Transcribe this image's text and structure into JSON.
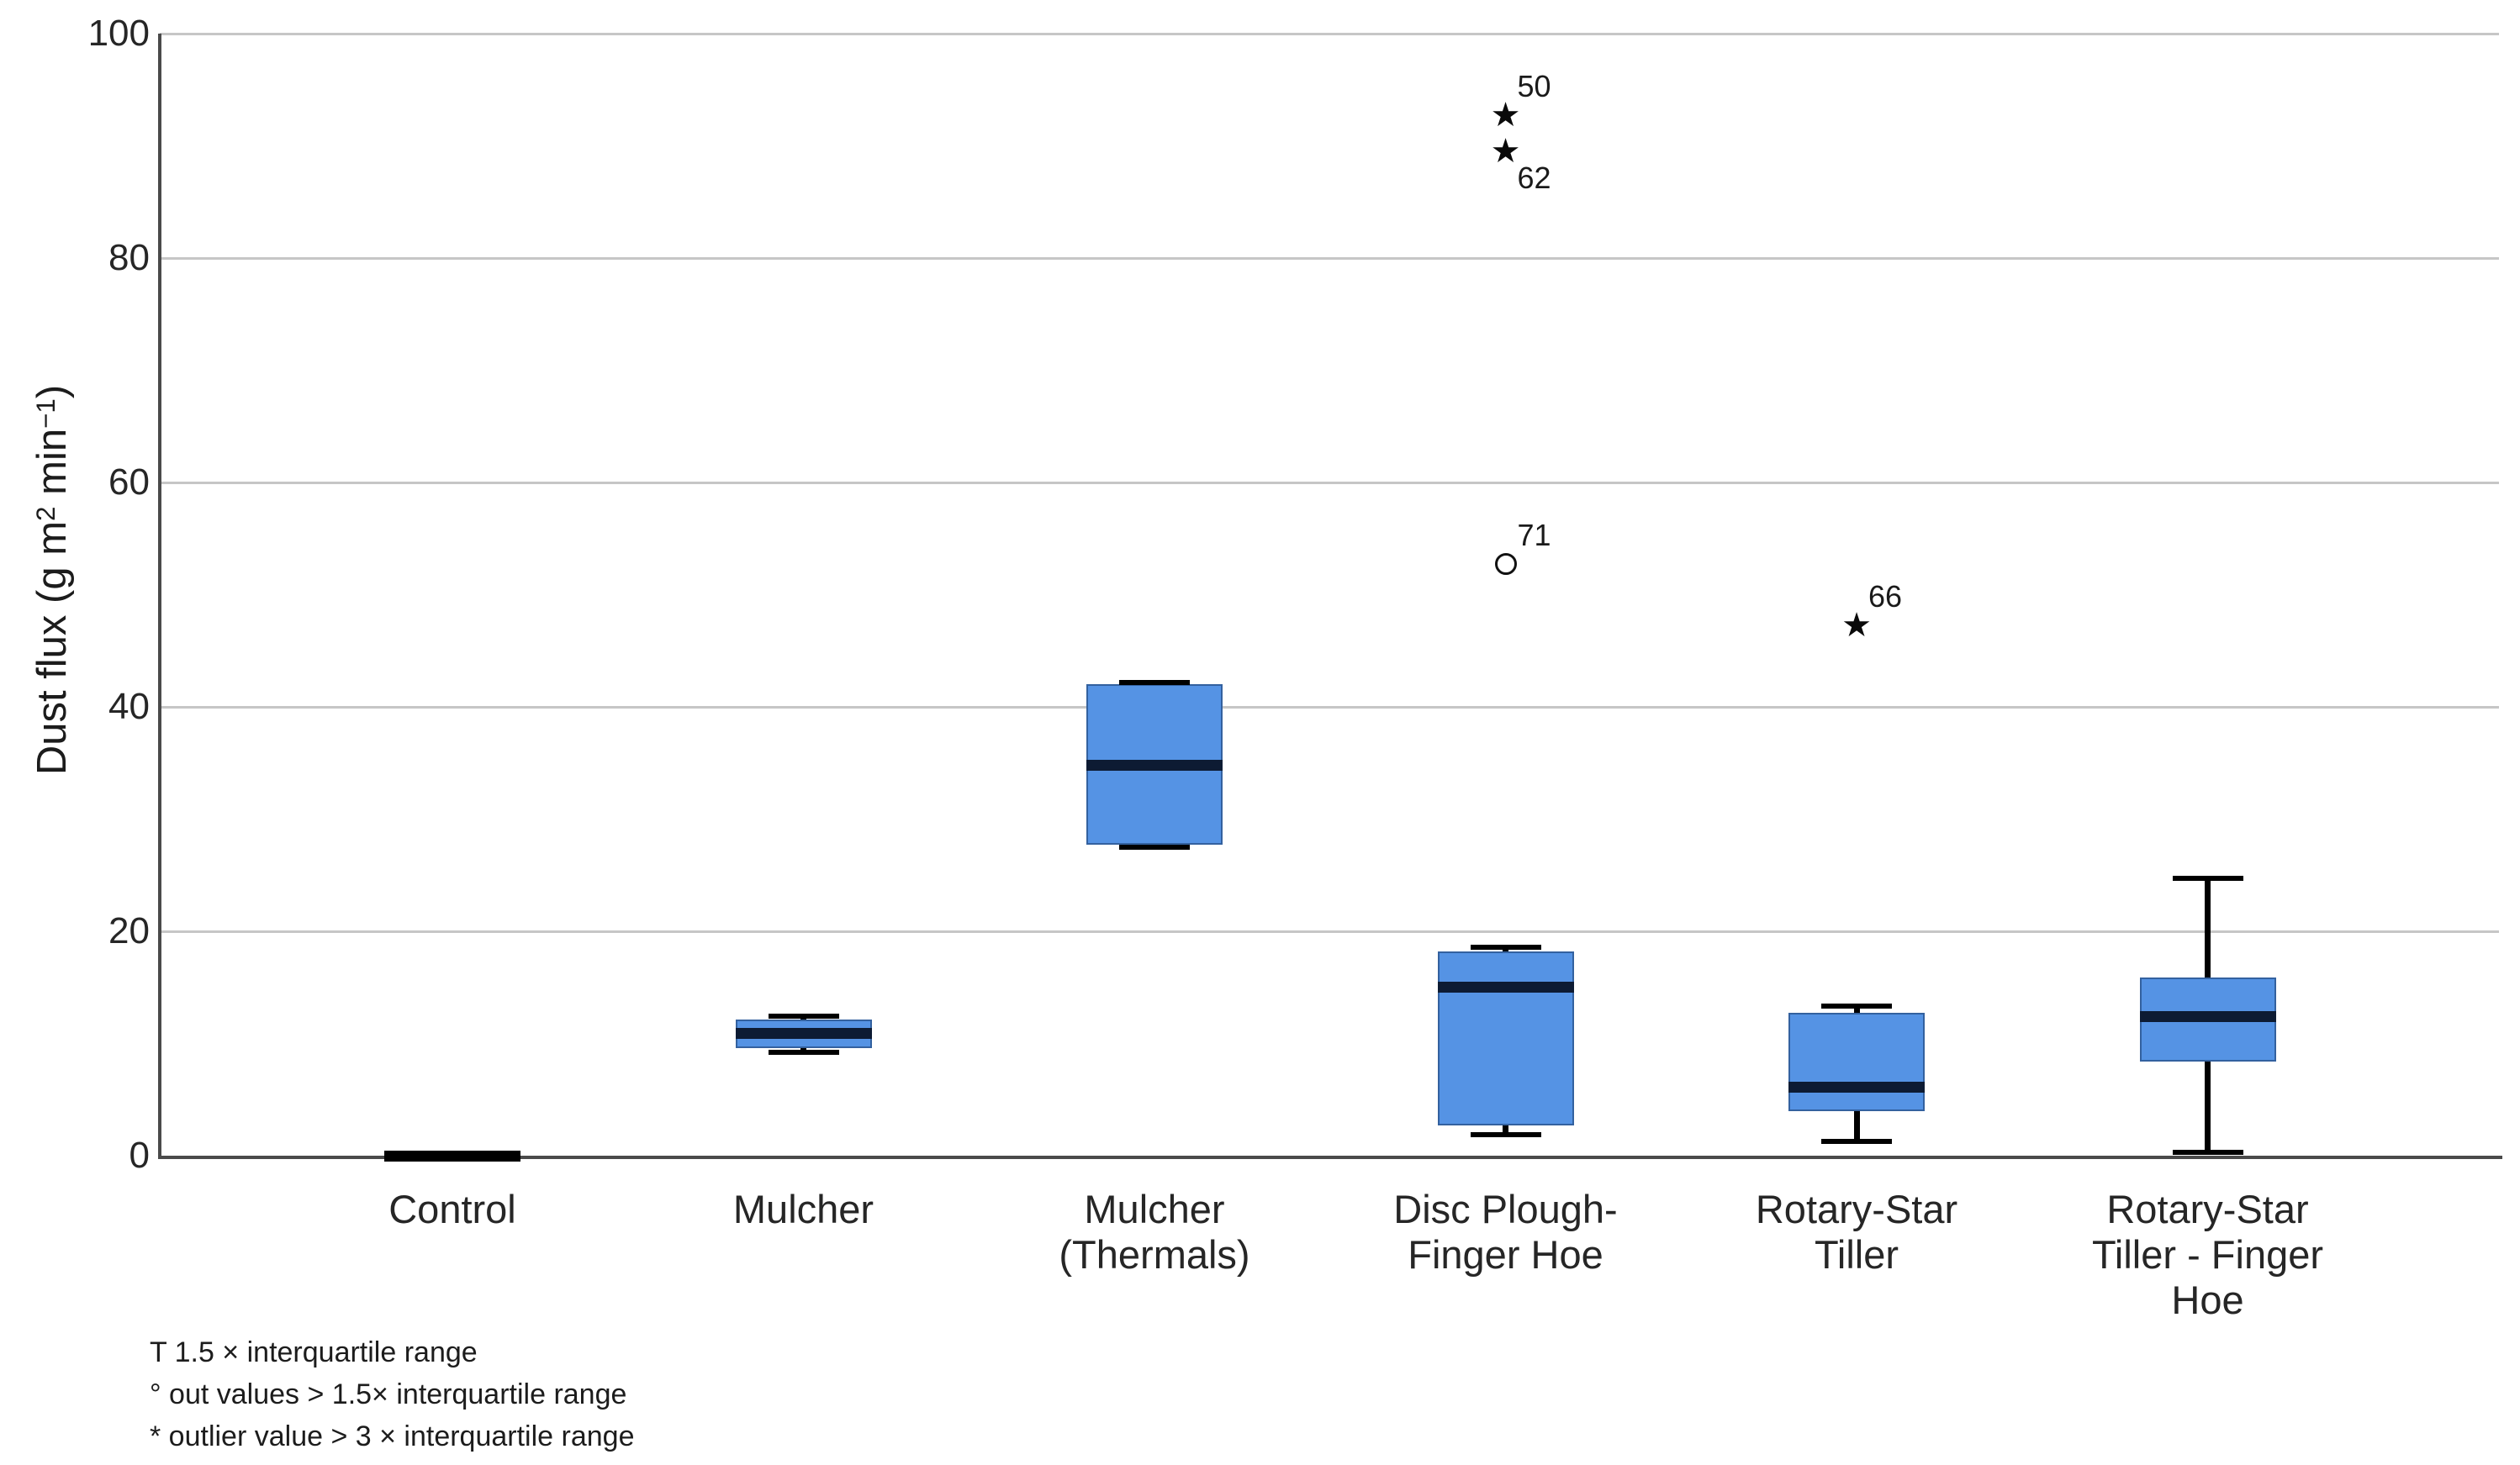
{
  "chart_data": {
    "type": "boxplot",
    "title": "",
    "ylabel_parts": [
      {
        "text": "Dust flux (g m",
        "sup": false
      },
      {
        "text": "2",
        "sup": true
      },
      {
        "text": " min",
        "sup": false
      },
      {
        "text": "−1",
        "sup": true
      },
      {
        "text": ")",
        "sup": false
      }
    ],
    "ylim": [
      0,
      100
    ],
    "yticks": [
      0,
      20,
      40,
      60,
      80,
      100
    ],
    "grid": "horizontal",
    "legend_position": "bottom-left-footnotes",
    "colors": {
      "box_fill": "#5593e4",
      "box_border": "#33619f",
      "median": "#0d1b33",
      "collapsed_box": "#000000",
      "whisker": "#000000",
      "gridline": "#c6c6c6",
      "axis": "#4a4a4a",
      "text": "#262626"
    },
    "marker_glyphs": {
      "star": "★",
      "circle": "○"
    },
    "series": [
      {
        "name": "Control",
        "label_lines": [
          "Control"
        ],
        "whisker_low": null,
        "q1": 0,
        "median": 0,
        "q3": 0,
        "whisker_high": null,
        "outliers": []
      },
      {
        "name": "Mulcher",
        "label_lines": [
          "Mulcher"
        ],
        "whisker_low": 9.2,
        "q1": 9.6,
        "median": 10.9,
        "q3": 12.1,
        "whisker_high": 12.4,
        "outliers": []
      },
      {
        "name": "Mulcher (Thermals)",
        "label_lines": [
          "Mulcher",
          "(Thermals)"
        ],
        "whisker_low": 27.5,
        "q1": 27.7,
        "median": 34.8,
        "q3": 42.0,
        "whisker_high": 42.2,
        "outliers": []
      },
      {
        "name": "Disc Plough-Finger Hoe",
        "label_lines": [
          "Disc Plough-",
          "Finger Hoe"
        ],
        "whisker_low": 1.9,
        "q1": 2.7,
        "median": 15.0,
        "q3": 18.2,
        "whisker_high": 18.6,
        "outliers": [
          {
            "type": "star",
            "value": 92.7,
            "label": "50",
            "label_pos": "above"
          },
          {
            "type": "star",
            "value": 89.5,
            "label": "62",
            "label_pos": "below"
          },
          {
            "type": "circle",
            "value": 52.7,
            "label": "71",
            "label_pos": "above"
          }
        ]
      },
      {
        "name": "Rotary-Star Tiller",
        "label_lines": [
          "Rotary-Star",
          "Tiller"
        ],
        "whisker_low": 1.3,
        "q1": 4.0,
        "median": 6.1,
        "q3": 12.7,
        "whisker_high": 13.3,
        "outliers": [
          {
            "type": "star",
            "value": 47.3,
            "label": "66",
            "label_pos": "above"
          }
        ]
      },
      {
        "name": "Rotary-Star Tiller - Finger Hoe",
        "label_lines": [
          "Rotary-Star",
          "Tiller - Finger",
          "Hoe"
        ],
        "whisker_low": 0.3,
        "q1": 8.4,
        "median": 12.4,
        "q3": 15.9,
        "whisker_high": 24.7,
        "outliers": []
      }
    ],
    "footnotes": [
      "T 1.5 × interquartile range",
      "° out values > 1.5× interquartile range",
      "* outlier value > 3 × interquartile range"
    ]
  }
}
